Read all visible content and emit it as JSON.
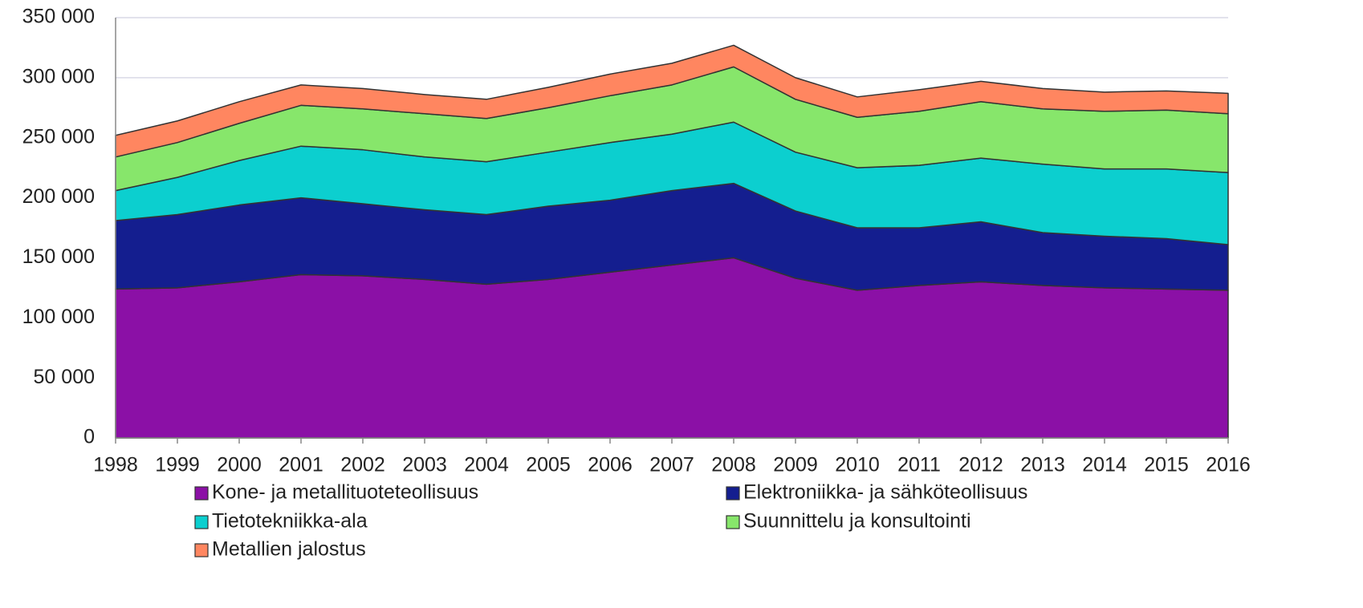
{
  "chart_data": {
    "type": "area",
    "stacked": true,
    "categories": [
      "1998",
      "1999",
      "2000",
      "2001",
      "2002",
      "2003",
      "2004",
      "2005",
      "2006",
      "2007",
      "2008",
      "2009",
      "2010",
      "2011",
      "2012",
      "2013",
      "2014",
      "2015",
      "2016"
    ],
    "series": [
      {
        "name": "Kone- ja metallituoteteollisuus",
        "color": "#8b10a6",
        "values": [
          124000,
          125000,
          130000,
          136000,
          135000,
          132000,
          128000,
          132000,
          138000,
          144000,
          150000,
          133000,
          123000,
          127000,
          130000,
          127000,
          125000,
          124000,
          123000
        ]
      },
      {
        "name": "Elektroniikka- ja sähköteollisuus",
        "color": "#141e8f",
        "values": [
          57000,
          61000,
          64000,
          64000,
          60000,
          58000,
          58000,
          61000,
          60000,
          62000,
          62000,
          56000,
          52000,
          48000,
          50000,
          44000,
          43000,
          42000,
          38000
        ]
      },
      {
        "name": "Tietotekniikka-ala",
        "color": "#0ccfcf",
        "values": [
          25000,
          31000,
          37000,
          43000,
          45000,
          44000,
          44000,
          45000,
          48000,
          47000,
          51000,
          49000,
          50000,
          52000,
          53000,
          57000,
          56000,
          58000,
          60000
        ]
      },
      {
        "name": "Suunnittelu ja konsultointi",
        "color": "#87e66b",
        "values": [
          28000,
          29000,
          31000,
          34000,
          34000,
          36000,
          36000,
          37000,
          39000,
          41000,
          46000,
          44000,
          42000,
          45000,
          47000,
          46000,
          48000,
          49000,
          49000
        ]
      },
      {
        "name": "Metallien jalostus",
        "color": "#ff8660",
        "values": [
          18000,
          18000,
          18000,
          17000,
          17000,
          16000,
          16000,
          17000,
          18000,
          18000,
          18000,
          18000,
          17000,
          18000,
          17000,
          17000,
          16000,
          16000,
          17000
        ]
      }
    ],
    "ylim": [
      0,
      350000
    ],
    "yticks": [
      0,
      {
        "value": 50000,
        "label": "50 000"
      },
      {
        "value": 100000,
        "label": "100 000"
      },
      {
        "value": 150000,
        "label": "150 000"
      },
      {
        "value": 200000,
        "label": "200 000"
      },
      {
        "value": 250000,
        "label": "250 000"
      },
      {
        "value": 300000,
        "label": "300 000"
      },
      {
        "value": 350000,
        "label": "350 000"
      }
    ],
    "grid": true,
    "legend": "bottom"
  }
}
